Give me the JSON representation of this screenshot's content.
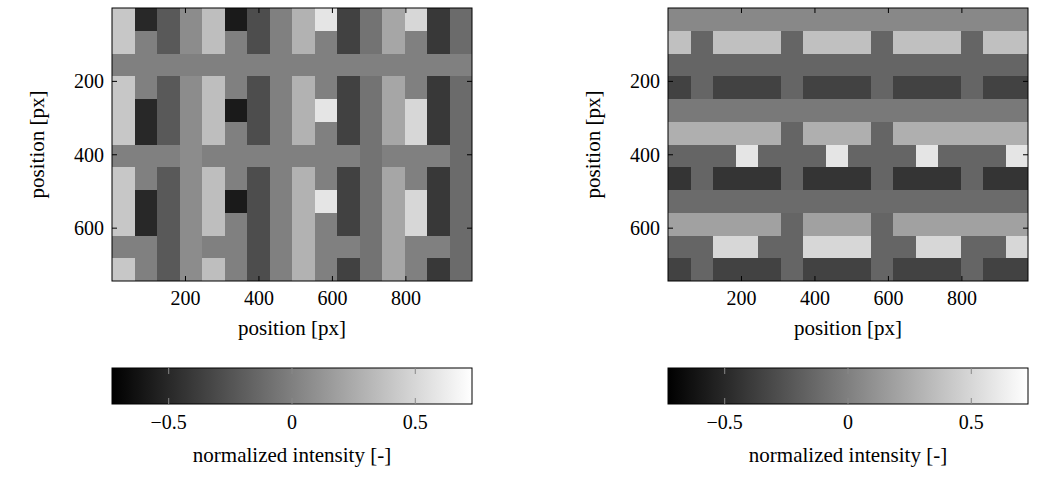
{
  "chart_data": [
    {
      "type": "heatmap",
      "x_label": "position [px]",
      "y_label": "position [px]",
      "xlim": [
        0,
        980
      ],
      "ylim": [
        744,
        0
      ],
      "xticks": [
        200,
        400,
        600,
        800
      ],
      "yticks": [
        200,
        400,
        600
      ],
      "x": [
        30.625,
        91.875,
        153.125,
        214.375,
        275.625,
        336.875,
        398.125,
        459.375,
        520.625,
        581.875,
        643.125,
        704.375,
        765.625,
        826.875,
        888.125,
        949.375
      ],
      "y": [
        31,
        93,
        155,
        217,
        279,
        341,
        403,
        465,
        527,
        589,
        651,
        713
      ],
      "cells": [
        [
          0.41,
          -0.5,
          -0.22,
          0.07,
          0.36,
          -0.58,
          -0.29,
          0,
          0.29,
          0.58,
          -0.36,
          -0.07,
          0.22,
          0.5,
          -0.41,
          -0.12
        ],
        [
          0.41,
          0,
          -0.22,
          0.07,
          0.36,
          0,
          -0.29,
          0,
          0.29,
          0,
          -0.36,
          -0.07,
          0.22,
          0,
          -0.41,
          -0.12
        ],
        [
          0,
          0,
          0,
          0,
          0,
          0,
          0,
          0,
          0,
          0,
          0,
          0,
          0,
          0,
          0,
          0
        ],
        [
          0.41,
          0,
          -0.22,
          0.07,
          0.36,
          0,
          -0.29,
          0,
          0.29,
          0,
          -0.36,
          -0.07,
          0.22,
          0,
          -0.41,
          -0.12
        ],
        [
          0.41,
          -0.5,
          -0.22,
          0.07,
          0.36,
          -0.58,
          -0.29,
          0,
          0.29,
          0.58,
          -0.36,
          -0.07,
          0.22,
          0.5,
          -0.41,
          -0.12
        ],
        [
          0.41,
          -0.5,
          -0.22,
          0.07,
          0.36,
          0,
          -0.29,
          0,
          0.29,
          0,
          -0.36,
          -0.07,
          0.22,
          0.5,
          -0.41,
          -0.12
        ],
        [
          0,
          0,
          0,
          0.07,
          0,
          0,
          0,
          0,
          0,
          0,
          0,
          -0.07,
          0,
          0,
          0,
          -0.12
        ],
        [
          0.41,
          0,
          -0.22,
          0.07,
          0.36,
          0,
          -0.29,
          0,
          0.29,
          0,
          -0.36,
          -0.07,
          0.22,
          0,
          -0.41,
          -0.12
        ],
        [
          0.41,
          -0.5,
          -0.22,
          0.07,
          0.36,
          -0.58,
          -0.29,
          0,
          0.29,
          0.58,
          -0.36,
          -0.07,
          0.22,
          0.5,
          -0.41,
          -0.12
        ],
        [
          0.41,
          -0.5,
          -0.22,
          0.07,
          0.36,
          0,
          -0.29,
          0,
          0.29,
          0,
          -0.36,
          -0.07,
          0.22,
          0.5,
          -0.41,
          -0.12
        ],
        [
          0,
          0,
          -0.22,
          0.07,
          0,
          0,
          -0.29,
          0,
          0.29,
          0,
          0,
          -0.07,
          0.22,
          0,
          0,
          -0.12
        ],
        [
          0.41,
          0,
          -0.22,
          0.07,
          0.36,
          0,
          -0.29,
          0,
          0.29,
          0,
          -0.36,
          -0.07,
          0.22,
          0,
          -0.41,
          -0.12
        ]
      ],
      "colorbar": {
        "range": [
          -0.73,
          0.73
        ],
        "ticks": [
          {
            "value": -0.5,
            "label": "−0.5"
          },
          0,
          0.5
        ],
        "label": "normalized intensity [-]"
      }
    },
    {
      "type": "heatmap",
      "x_label": "position [px]",
      "y_label": "position [px]",
      "xlim": [
        0,
        980
      ],
      "ylim": [
        744,
        0
      ],
      "xticks": [
        200,
        400,
        600,
        800
      ],
      "yticks": [
        200,
        400,
        600
      ],
      "x": [
        30.625,
        91.875,
        153.125,
        214.375,
        275.625,
        336.875,
        398.125,
        459.375,
        520.625,
        581.875,
        643.125,
        704.375,
        765.625,
        826.875,
        888.125,
        949.375
      ],
      "y": [
        31,
        93,
        155,
        217,
        279,
        341,
        403,
        465,
        527,
        589,
        651,
        713
      ],
      "cells": [
        [
          0.05,
          0.05,
          0.05,
          0.05,
          0.05,
          0.05,
          0.05,
          0.05,
          0.05,
          0.05,
          0.05,
          0.05,
          0.05,
          0.05,
          0.05,
          0.05
        ],
        [
          0.37,
          -0.15,
          0.37,
          0.37,
          0.37,
          -0.15,
          0.37,
          0.37,
          0.37,
          -0.15,
          0.37,
          0.37,
          0.37,
          -0.15,
          0.37,
          0.37
        ],
        [
          -0.15,
          -0.15,
          -0.15,
          -0.15,
          -0.15,
          -0.15,
          -0.15,
          -0.15,
          -0.15,
          -0.15,
          -0.15,
          -0.15,
          -0.15,
          -0.15,
          -0.15,
          -0.15
        ],
        [
          -0.35,
          -0.15,
          -0.35,
          -0.35,
          -0.35,
          -0.15,
          -0.35,
          -0.35,
          -0.35,
          -0.15,
          -0.35,
          -0.35,
          -0.35,
          -0.15,
          -0.35,
          -0.35
        ],
        [
          -0.04,
          -0.04,
          -0.04,
          -0.04,
          -0.04,
          -0.04,
          -0.04,
          -0.04,
          -0.04,
          -0.04,
          -0.04,
          -0.04,
          -0.04,
          -0.04,
          -0.04,
          -0.04
        ],
        [
          0.27,
          0.27,
          0.27,
          0.27,
          0.27,
          -0.15,
          0.27,
          0.27,
          0.27,
          -0.15,
          0.27,
          0.27,
          0.27,
          0.27,
          0.27,
          0.27
        ],
        [
          -0.15,
          -0.15,
          -0.15,
          0.58,
          -0.15,
          -0.15,
          -0.15,
          0.58,
          -0.15,
          -0.15,
          -0.15,
          0.58,
          -0.15,
          -0.15,
          -0.15,
          0.58
        ],
        [
          -0.43,
          -0.15,
          -0.43,
          -0.43,
          -0.43,
          -0.15,
          -0.43,
          -0.43,
          -0.43,
          -0.15,
          -0.43,
          -0.43,
          -0.43,
          -0.15,
          -0.43,
          -0.43
        ],
        [
          -0.12,
          -0.12,
          -0.12,
          -0.12,
          -0.12,
          -0.12,
          -0.12,
          -0.12,
          -0.12,
          -0.12,
          -0.12,
          -0.12,
          -0.12,
          -0.12,
          -0.12,
          -0.12
        ],
        [
          0.19,
          0.19,
          0.19,
          0.19,
          0.19,
          -0.15,
          0.19,
          0.19,
          0.19,
          -0.15,
          0.19,
          0.19,
          0.19,
          0.19,
          0.19,
          0.19
        ],
        [
          -0.15,
          -0.15,
          0.5,
          0.5,
          -0.15,
          -0.15,
          0.5,
          0.5,
          0.5,
          -0.15,
          -0.15,
          0.5,
          0.5,
          -0.15,
          -0.15,
          0.5
        ],
        [
          -0.35,
          -0.15,
          -0.35,
          -0.35,
          -0.35,
          -0.15,
          -0.35,
          -0.35,
          -0.35,
          -0.15,
          -0.35,
          -0.35,
          -0.35,
          -0.15,
          -0.35,
          -0.35
        ]
      ],
      "colorbar": {
        "range": [
          -0.73,
          0.73
        ],
        "ticks": [
          {
            "value": -0.5,
            "label": "−0.5"
          },
          0,
          0.5
        ],
        "label": "normalized intensity [-]"
      }
    }
  ]
}
